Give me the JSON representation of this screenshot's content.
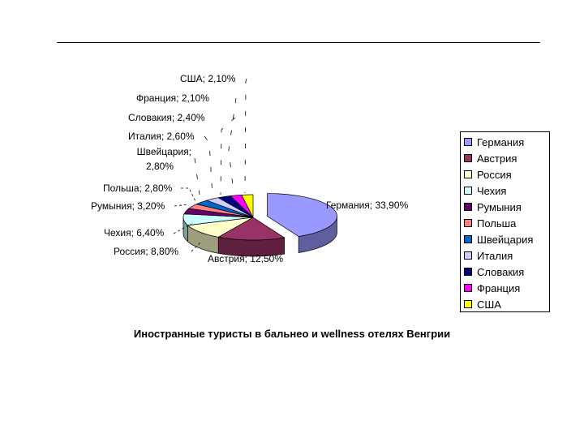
{
  "chart_data": {
    "type": "pie",
    "style": "3d-exploded",
    "title": "Иностранные туристы в бальнео и wellness отелях Венгрии",
    "slices": [
      {
        "name": "Германия",
        "value": 33.9,
        "label": "Германия; 33,90%",
        "color": "#9999FF"
      },
      {
        "name": "Австрия",
        "value": 12.5,
        "label": "Австрия; 12,50%",
        "color": "#993366"
      },
      {
        "name": "Россия",
        "value": 8.8,
        "label": "Россия; 8,80%",
        "color": "#FFFFCC"
      },
      {
        "name": "Чехия",
        "value": 6.4,
        "label": "Чехия; 6,40%",
        "color": "#CCFFFF"
      },
      {
        "name": "Румыния",
        "value": 3.2,
        "label": "Румыния; 3,20%",
        "color": "#660066"
      },
      {
        "name": "Польша",
        "value": 2.8,
        "label": "Польша; 2,80%",
        "color": "#FF8080"
      },
      {
        "name": "Швейцария",
        "value": 2.8,
        "label": "Швейцария; 2,80%",
        "label_lines": [
          "Швейцария;",
          "2,80%"
        ],
        "color": "#0066CC"
      },
      {
        "name": "Италия",
        "value": 2.6,
        "label": "Италия; 2,60%",
        "color": "#CCCCFF"
      },
      {
        "name": "Словакия",
        "value": 2.4,
        "label": "Словакия; 2,40%",
        "color": "#000080"
      },
      {
        "name": "Франция",
        "value": 2.1,
        "label": "Франция; 2,10%",
        "color": "#FF00FF"
      },
      {
        "name": "США",
        "value": 2.1,
        "label": "США; 2,10%",
        "color": "#FFFF00"
      }
    ],
    "legend_placement": "right"
  }
}
